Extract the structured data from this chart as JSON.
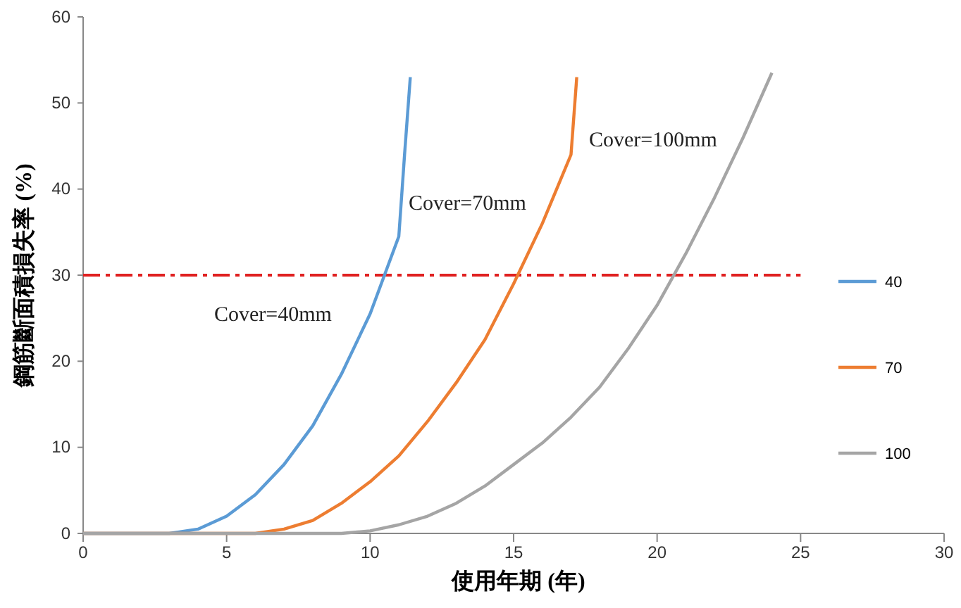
{
  "chart_data": {
    "type": "line",
    "xlabel": "使用年期 (年)",
    "ylabel": "鋼筋斷面積損失率 (%)",
    "xlim": [
      0,
      30
    ],
    "xticks": [
      0,
      5,
      10,
      15,
      20,
      25,
      30
    ],
    "ylim": [
      0,
      60
    ],
    "yticks": [
      0,
      10,
      20,
      30,
      40,
      50,
      60
    ],
    "grid": false,
    "legend": "right",
    "marker": "none",
    "line_style": "solid",
    "series": [
      {
        "name": "40",
        "color": "#5b9bd5",
        "x": [
          0,
          3,
          4,
          5,
          6,
          7,
          8,
          9,
          10,
          11,
          11.2,
          11.4
        ],
        "values": [
          0,
          0,
          0.5,
          2,
          4.5,
          8,
          12.5,
          18.5,
          25.5,
          34.5,
          44,
          53
        ]
      },
      {
        "name": "70",
        "color": "#ed7d31",
        "x": [
          0,
          6,
          7,
          8,
          9,
          10,
          11,
          12,
          13,
          14,
          15,
          16,
          17,
          17.2
        ],
        "values": [
          0,
          0,
          0.5,
          1.5,
          3.5,
          6,
          9,
          13,
          17.5,
          22.5,
          29,
          36,
          44,
          53
        ]
      },
      {
        "name": "100",
        "color": "#a5a5a5",
        "x": [
          0,
          9,
          10,
          11,
          12,
          13,
          14,
          15,
          16,
          17,
          18,
          19,
          20,
          21,
          22,
          23,
          24
        ],
        "values": [
          0,
          0,
          0.3,
          1,
          2,
          3.5,
          5.5,
          8,
          10.5,
          13.5,
          17,
          21.5,
          26.5,
          32.5,
          39,
          46,
          53.5
        ]
      }
    ],
    "ref_lines": [
      {
        "axis": "y",
        "value": 30,
        "color": "#e02020",
        "line_style": "dashed"
      }
    ],
    "annotations": [
      "Cover=40mm",
      "Cover=70mm",
      "Cover=100mm"
    ]
  }
}
